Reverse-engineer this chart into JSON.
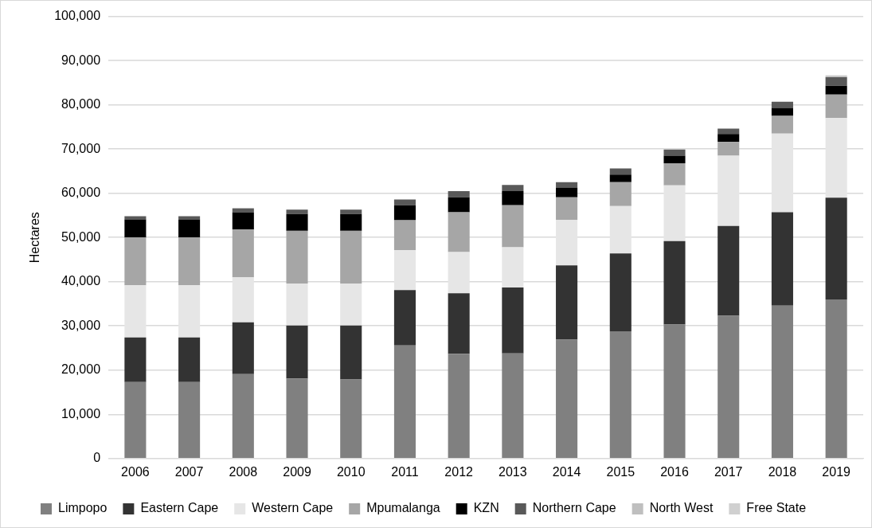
{
  "chart_data": {
    "type": "bar",
    "stacked": true,
    "ylabel": "Hectares",
    "categories": [
      "2006",
      "2007",
      "2008",
      "2009",
      "2010",
      "2011",
      "2012",
      "2013",
      "2014",
      "2015",
      "2016",
      "2017",
      "2018",
      "2019"
    ],
    "series": [
      {
        "name": "Limpopo",
        "color": "#808080",
        "values": [
          17300,
          17300,
          19100,
          18100,
          17900,
          25600,
          23700,
          23800,
          26900,
          28800,
          30300,
          32300,
          34600,
          36000
        ]
      },
      {
        "name": "Eastern Cape",
        "color": "#333333",
        "values": [
          10100,
          10100,
          11700,
          12000,
          12200,
          12500,
          13700,
          14900,
          16800,
          17600,
          18900,
          20300,
          21100,
          23000
        ]
      },
      {
        "name": "Western Cape",
        "color": "#e6e6e6",
        "values": [
          11800,
          11800,
          10200,
          9500,
          9500,
          9000,
          9300,
          9100,
          10300,
          10700,
          12600,
          15900,
          17800,
          18000
        ]
      },
      {
        "name": "Mpumalanga",
        "color": "#a6a6a6",
        "values": [
          10800,
          10800,
          10800,
          11900,
          11900,
          6800,
          9000,
          9500,
          5100,
          5400,
          5000,
          3100,
          4000,
          5300
        ]
      },
      {
        "name": "KZN",
        "color": "#000000",
        "values": [
          4100,
          4100,
          3900,
          3800,
          3800,
          3400,
          3400,
          3200,
          2200,
          1700,
          1700,
          1800,
          1800,
          2000
        ]
      },
      {
        "name": "Northern Cape",
        "color": "#595959",
        "values": [
          700,
          700,
          900,
          1000,
          1000,
          1300,
          1400,
          1400,
          1200,
          1400,
          1400,
          1200,
          1400,
          2000
        ]
      },
      {
        "name": "North West",
        "color": "#bfbfbf",
        "values": [
          0,
          0,
          0,
          0,
          0,
          0,
          0,
          0,
          0,
          0,
          0,
          0,
          null,
          0
        ]
      },
      {
        "name": "Free State",
        "color": "#d0d0d0",
        "values": [
          0,
          0,
          0,
          0,
          0,
          0,
          0,
          0,
          0,
          0,
          0,
          null,
          0,
          400
        ]
      }
    ],
    "ylim": [
      0,
      100000
    ],
    "yticks": [
      0,
      {
        "value": 10000,
        "label": "10,000"
      },
      {
        "value": 20000,
        "label": "20,000"
      },
      {
        "value": 30000,
        "label": "30,000"
      },
      {
        "value": 40000,
        "label": "40,000"
      },
      {
        "value": 50000,
        "label": "50,000"
      },
      {
        "value": 60000,
        "label": "60,000"
      },
      {
        "value": 70000,
        "label": "70,000"
      },
      {
        "value": 80000,
        "label": "80,000"
      },
      {
        "value": 90000,
        "label": "90,000"
      },
      {
        "value": 100000,
        "label": "100,000"
      }
    ],
    "grid": "y",
    "legend": "bottom"
  }
}
